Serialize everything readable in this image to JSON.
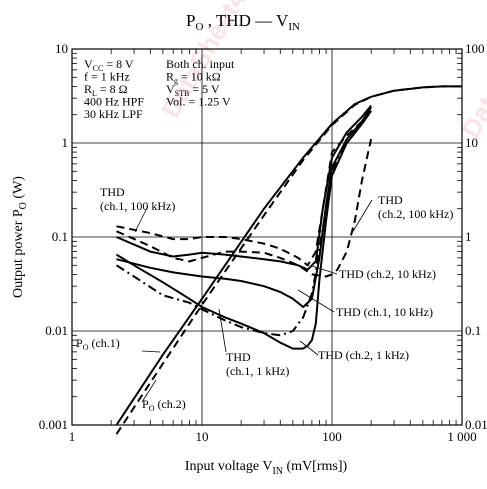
{
  "chart_data": {
    "type": "line",
    "title": {
      "base": "P",
      "sub1": "O",
      "mid": " , THD — V",
      "sub2": "IN"
    },
    "xlabel": {
      "base": "Input voltage  V",
      "sub": "IN",
      "rest": "  (mV[rms])"
    },
    "ylabel": {
      "base": "Output power  P",
      "sub": "O",
      "rest": "  (W)"
    },
    "x_scale": "log",
    "y_scale": "log",
    "xlim": [
      1,
      1000
    ],
    "ylim_left": [
      0.001,
      10
    ],
    "ylim_right": [
      0.01,
      100
    ],
    "x_ticks": [
      "1",
      "10",
      "100",
      "1 000"
    ],
    "y_ticks_left": [
      "0.001",
      "0.01",
      "0.1",
      "1",
      "10"
    ],
    "y_ticks_right": [
      "0.01",
      "0.1",
      "1",
      "10",
      "100"
    ],
    "grid": true,
    "conditions_left": [
      {
        "base": "V",
        "sub": "CC",
        "rest": " = 8 V"
      },
      {
        "base": "f = 1 kHz",
        "sub": "",
        "rest": ""
      },
      {
        "base": "R",
        "sub": "L",
        "rest": " = 8 Ω"
      },
      {
        "base": "400 Hz HPF",
        "sub": "",
        "rest": ""
      },
      {
        "base": "30 kHz LPF",
        "sub": "",
        "rest": ""
      }
    ],
    "conditions_right": [
      {
        "base": "Both ch. input",
        "sub": "",
        "rest": ""
      },
      {
        "base": "R",
        "sub": "g",
        "rest": " = 10 kΩ"
      },
      {
        "base": "V",
        "sub": "STB",
        "rest": " = 5 V"
      },
      {
        "base": "Vol. = 1.25 V",
        "sub": "",
        "rest": ""
      }
    ],
    "series": [
      {
        "id": "po1",
        "axis": "left",
        "style": "solid",
        "x": [
          2.2,
          5,
          10,
          30,
          60,
          100,
          150,
          200,
          300,
          500,
          700,
          1000
        ],
        "y": [
          0.001,
          0.0056,
          0.022,
          0.2,
          0.7,
          1.6,
          2.6,
          3.1,
          3.6,
          3.9,
          4.0,
          4.0
        ]
      },
      {
        "id": "po2",
        "axis": "left",
        "style": "dashed",
        "x": [
          2.2,
          5,
          10,
          30,
          60,
          100,
          150,
          200,
          300,
          500,
          700,
          1000
        ],
        "y": [
          0.0008,
          0.0045,
          0.019,
          0.17,
          0.66,
          1.55,
          2.55,
          3.1,
          3.6,
          3.9,
          4.0,
          4.0
        ]
      },
      {
        "id": "thd1_100k",
        "axis": "right",
        "style": "dashed",
        "x": [
          2.2,
          4,
          6,
          8,
          10,
          15,
          20,
          30,
          40,
          55,
          65,
          75,
          85,
          100,
          130,
          170,
          200
        ],
        "y": [
          1.3,
          1.1,
          0.95,
          0.95,
          1.0,
          1.0,
          0.95,
          0.85,
          0.75,
          0.6,
          0.5,
          0.7,
          2.0,
          8.0,
          12.0,
          17.0,
          22.0
        ]
      },
      {
        "id": "thd2_100k",
        "axis": "right",
        "style": "dashed",
        "x": [
          2.2,
          4,
          6,
          8,
          10,
          15,
          20,
          30,
          40,
          55,
          70,
          90,
          100,
          110,
          130,
          150,
          170,
          200
        ],
        "y": [
          1.15,
          0.8,
          0.6,
          0.55,
          0.6,
          0.7,
          0.7,
          0.68,
          0.6,
          0.5,
          0.4,
          0.38,
          0.4,
          0.45,
          0.7,
          1.5,
          4.0,
          11.0
        ]
      },
      {
        "id": "thd2_10k",
        "axis": "right",
        "style": "solid",
        "x": [
          2.2,
          4,
          6,
          8,
          10,
          15,
          20,
          30,
          40,
          55,
          65,
          75,
          85,
          100,
          130,
          170,
          200
        ],
        "y": [
          1.0,
          0.7,
          0.62,
          0.65,
          0.68,
          0.65,
          0.62,
          0.58,
          0.55,
          0.5,
          0.45,
          0.55,
          2.0,
          7.0,
          13.0,
          19.0,
          25.0
        ]
      },
      {
        "id": "thd1_10k",
        "axis": "right",
        "style": "solid",
        "x": [
          2.2,
          4,
          6,
          10,
          15,
          20,
          30,
          40,
          50,
          60,
          70,
          80,
          90,
          100,
          130,
          170,
          200
        ],
        "y": [
          0.58,
          0.47,
          0.42,
          0.38,
          0.36,
          0.34,
          0.3,
          0.26,
          0.22,
          0.18,
          0.22,
          0.6,
          2.2,
          5.5,
          11.0,
          17.0,
          24.0
        ]
      },
      {
        "id": "thd1_1k",
        "axis": "right",
        "style": "dashdot",
        "x": [
          2.2,
          3,
          5,
          8,
          10,
          15,
          20,
          30,
          40,
          50,
          60,
          70,
          75,
          80,
          90,
          100,
          130,
          170,
          200
        ],
        "y": [
          0.5,
          0.38,
          0.24,
          0.2,
          0.17,
          0.13,
          0.11,
          0.095,
          0.09,
          0.1,
          0.14,
          0.25,
          0.42,
          0.75,
          2.0,
          5.0,
          10.0,
          16.0,
          22.0
        ]
      },
      {
        "id": "thd2_1k",
        "axis": "right",
        "style": "solid",
        "x": [
          2.2,
          3,
          5,
          8,
          10,
          15,
          20,
          30,
          40,
          50,
          60,
          65,
          70,
          75,
          80,
          90,
          100,
          130,
          170,
          200
        ],
        "y": [
          0.65,
          0.5,
          0.33,
          0.22,
          0.18,
          0.14,
          0.12,
          0.095,
          0.075,
          0.065,
          0.065,
          0.07,
          0.08,
          0.12,
          0.35,
          1.5,
          4.5,
          10.0,
          16.0,
          22.0
        ]
      }
    ],
    "curve_labels": [
      {
        "id": "thd_ch1_100k",
        "lines": [
          {
            "base": "THD",
            "sub": "",
            "rest": ""
          },
          {
            "base": "(ch.1, 100 kHz)",
            "sub": "",
            "rest": ""
          }
        ]
      },
      {
        "id": "thd_ch2_100k",
        "lines": [
          {
            "base": "THD",
            "sub": "",
            "rest": ""
          },
          {
            "base": "(ch.2, 100 kHz)",
            "sub": "",
            "rest": ""
          }
        ]
      },
      {
        "id": "thd_ch2_10k",
        "lines": [
          {
            "base": "THD (ch.2, 10 kHz)",
            "sub": "",
            "rest": ""
          }
        ]
      },
      {
        "id": "thd_ch1_10k",
        "lines": [
          {
            "base": "THD (ch.1, 10 kHz)",
            "sub": "",
            "rest": ""
          }
        ]
      },
      {
        "id": "thd_ch1_1k",
        "lines": [
          {
            "base": "THD",
            "sub": "",
            "rest": ""
          },
          {
            "base": "(ch.1, 1 kHz)",
            "sub": "",
            "rest": ""
          }
        ]
      },
      {
        "id": "thd_ch2_1k",
        "lines": [
          {
            "base": "THD (ch.2, 1 kHz)",
            "sub": "",
            "rest": ""
          }
        ]
      },
      {
        "id": "po_ch1",
        "lines": [
          {
            "base": "P",
            "sub": "O",
            "rest": " (ch.1)"
          }
        ]
      },
      {
        "id": "po_ch2",
        "lines": [
          {
            "base": "P",
            "sub": "O",
            "rest": " (ch.2)"
          }
        ]
      }
    ],
    "watermark": "DataSheet4U"
  }
}
